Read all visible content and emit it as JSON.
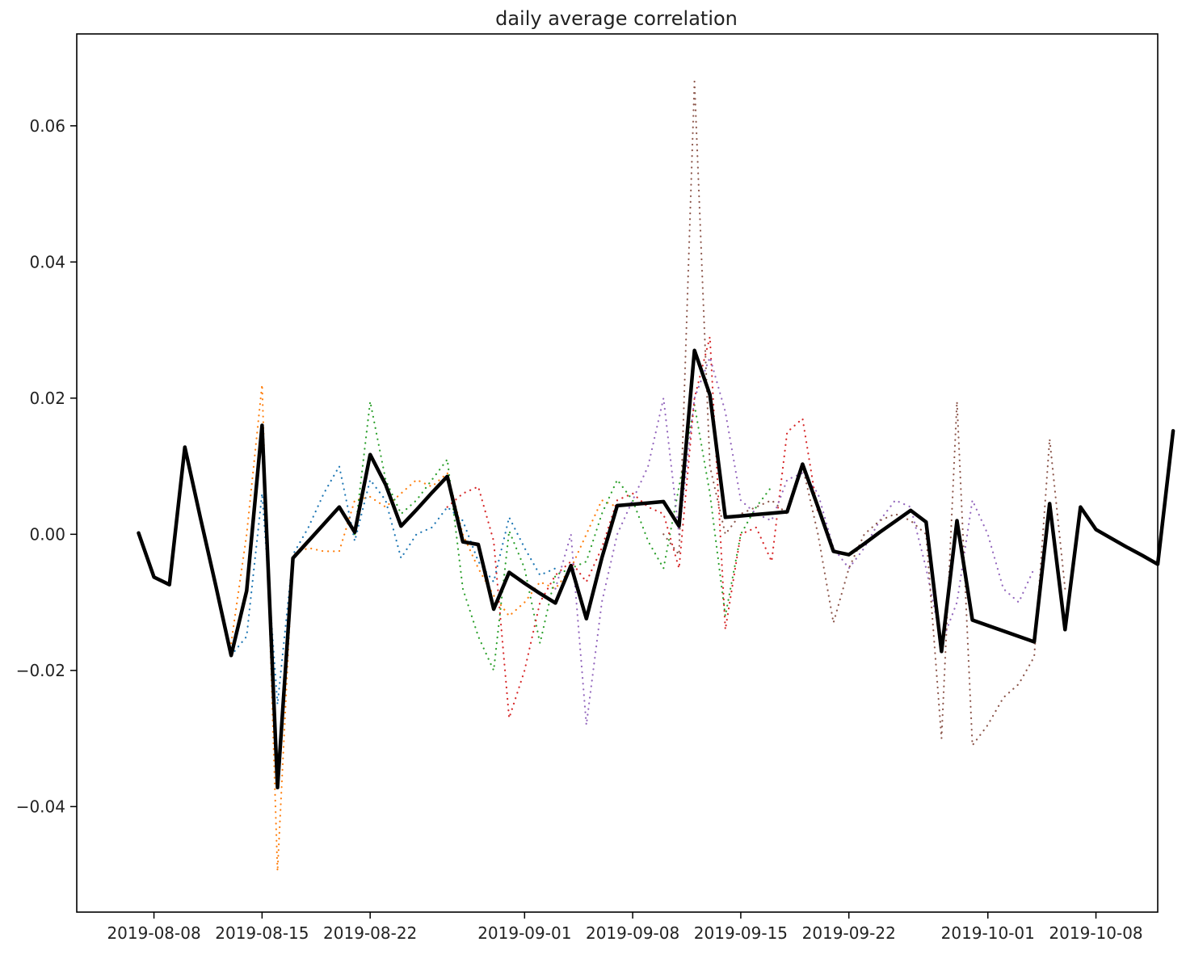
{
  "chart_data": {
    "type": "line",
    "title": "daily average correlation",
    "xlabel": "",
    "ylabel": "",
    "x_start": "2019-08-07",
    "x_end": "2019-10-10",
    "xlim": [
      "2019-08-03",
      "2019-10-12"
    ],
    "ylim": [
      -0.0555,
      0.0735
    ],
    "x_ticks": [
      "2019-08-08",
      "2019-08-15",
      "2019-08-22",
      "2019-09-01",
      "2019-09-08",
      "2019-09-15",
      "2019-09-22",
      "2019-10-01",
      "2019-10-08"
    ],
    "y_ticks": [
      -0.04,
      -0.02,
      0.0,
      0.02,
      0.04,
      0.06
    ],
    "y_tick_labels": [
      "−0.04",
      "−0.02",
      "0.00",
      "0.02",
      "0.04",
      "0.06"
    ],
    "grid": false,
    "legend": "none",
    "series": [
      {
        "style": "solid",
        "color": "#000000",
        "points": [
          [
            "2019-08-07",
            0.0002
          ],
          [
            "2019-08-08",
            -0.0063
          ],
          [
            "2019-08-09",
            -0.0074
          ],
          [
            "2019-08-10",
            0.0128
          ],
          [
            "2019-08-11",
            0.0025
          ],
          [
            "2019-08-12",
            -0.0075
          ],
          [
            "2019-08-13",
            -0.0178
          ],
          [
            "2019-08-14",
            -0.0083
          ],
          [
            "2019-08-15",
            0.016
          ],
          [
            "2019-08-16",
            -0.0372
          ],
          [
            "2019-08-17",
            -0.0035
          ],
          [
            "2019-08-18",
            -0.001
          ],
          [
            "2019-08-19",
            0.0015
          ],
          [
            "2019-08-20",
            0.004
          ],
          [
            "2019-08-21",
            0.0003
          ],
          [
            "2019-08-22",
            0.0117
          ],
          [
            "2019-08-23",
            0.0073
          ],
          [
            "2019-08-24",
            0.0012
          ],
          [
            "2019-08-25",
            0.0036
          ],
          [
            "2019-08-26",
            0.0061
          ],
          [
            "2019-08-27",
            0.0085
          ],
          [
            "2019-08-28",
            -0.0011
          ],
          [
            "2019-08-29",
            -0.0015
          ],
          [
            "2019-08-30",
            -0.011
          ],
          [
            "2019-08-31",
            -0.0056
          ],
          [
            "2019-09-01",
            -0.0072
          ],
          [
            "2019-09-02",
            -0.0087
          ],
          [
            "2019-09-03",
            -0.0101
          ],
          [
            "2019-09-04",
            -0.0046
          ],
          [
            "2019-09-05",
            -0.0124
          ],
          [
            "2019-09-06",
            -0.0035
          ],
          [
            "2019-09-07",
            0.0042
          ],
          [
            "2019-09-08",
            0.0044
          ],
          [
            "2019-09-09",
            0.0046
          ],
          [
            "2019-09-10",
            0.0048
          ],
          [
            "2019-09-11",
            0.0012
          ],
          [
            "2019-09-12",
            0.027
          ],
          [
            "2019-09-13",
            0.0205
          ],
          [
            "2019-09-14",
            0.0025
          ],
          [
            "2019-09-15",
            0.0027
          ],
          [
            "2019-09-16",
            0.0029
          ],
          [
            "2019-09-17",
            0.0031
          ],
          [
            "2019-09-18",
            0.0033
          ],
          [
            "2019-09-19",
            0.0103
          ],
          [
            "2019-09-20",
            0.004
          ],
          [
            "2019-09-21",
            -0.0025
          ],
          [
            "2019-09-22",
            -0.003
          ],
          [
            "2019-09-23",
            -0.0014
          ],
          [
            "2019-09-24",
            0.0003
          ],
          [
            "2019-09-25",
            0.0019
          ],
          [
            "2019-09-26",
            0.0035
          ],
          [
            "2019-09-27",
            0.0018
          ],
          [
            "2019-09-28",
            -0.0172
          ],
          [
            "2019-09-29",
            0.002
          ],
          [
            "2019-09-30",
            -0.0126
          ],
          [
            "2019-10-01",
            -0.0134
          ],
          [
            "2019-10-02",
            -0.0142
          ],
          [
            "2019-10-03",
            -0.015
          ],
          [
            "2019-10-04",
            -0.0158
          ],
          [
            "2019-10-05",
            0.0045
          ],
          [
            "2019-10-06",
            -0.014
          ],
          [
            "2019-10-07",
            0.004
          ],
          [
            "2019-10-08",
            0.0007
          ],
          [
            "2019-10-09",
            -0.0006
          ],
          [
            "2019-10-10",
            -0.0019
          ],
          [
            "2019-10-11",
            -0.0031
          ],
          [
            "2019-10-12",
            -0.0044
          ],
          [
            "2019-10-13",
            0.0152
          ]
        ]
      },
      {
        "style": "dotted",
        "color": "#1f77b4",
        "points": [
          [
            "2019-08-13",
            -0.0178
          ],
          [
            "2019-08-14",
            -0.015
          ],
          [
            "2019-08-15",
            0.006
          ],
          [
            "2019-08-16",
            -0.025
          ],
          [
            "2019-08-17",
            -0.003
          ],
          [
            "2019-08-18",
            0.001
          ],
          [
            "2019-08-19",
            0.006
          ],
          [
            "2019-08-20",
            0.01
          ],
          [
            "2019-08-21",
            -0.001
          ],
          [
            "2019-08-22",
            0.008
          ],
          [
            "2019-08-23",
            0.005
          ],
          [
            "2019-08-24",
            -0.0035
          ],
          [
            "2019-08-25",
            0.0
          ],
          [
            "2019-08-26",
            0.001
          ],
          [
            "2019-08-27",
            0.004
          ],
          [
            "2019-08-28",
            0.002
          ],
          [
            "2019-08-29",
            -0.004
          ],
          [
            "2019-08-30",
            -0.007
          ],
          [
            "2019-08-31",
            0.0025
          ],
          [
            "2019-09-01",
            -0.002
          ],
          [
            "2019-09-02",
            -0.006
          ],
          [
            "2019-09-03",
            -0.005
          ]
        ]
      },
      {
        "style": "dotted",
        "color": "#ff7f0e",
        "points": [
          [
            "2019-08-13",
            -0.016
          ],
          [
            "2019-08-14",
            0.0
          ],
          [
            "2019-08-15",
            0.022
          ],
          [
            "2019-08-16",
            -0.0495
          ],
          [
            "2019-08-17",
            -0.003
          ],
          [
            "2019-08-18",
            -0.002
          ],
          [
            "2019-08-19",
            -0.0025
          ],
          [
            "2019-08-20",
            -0.0025
          ],
          [
            "2019-08-21",
            0.005
          ],
          [
            "2019-08-22",
            0.0055
          ],
          [
            "2019-08-23",
            0.004
          ],
          [
            "2019-08-24",
            0.006
          ],
          [
            "2019-08-25",
            0.008
          ],
          [
            "2019-08-26",
            0.007
          ],
          [
            "2019-08-27",
            0.009
          ],
          [
            "2019-08-28",
            0.0
          ],
          [
            "2019-08-29",
            -0.005
          ],
          [
            "2019-08-30",
            -0.009
          ],
          [
            "2019-08-31",
            -0.012
          ],
          [
            "2019-09-01",
            -0.01
          ],
          [
            "2019-09-02",
            -0.007
          ],
          [
            "2019-09-03",
            -0.008
          ],
          [
            "2019-09-04",
            -0.005
          ],
          [
            "2019-09-05",
            0.0
          ],
          [
            "2019-09-06",
            0.005
          ],
          [
            "2019-09-07",
            0.004
          ]
        ]
      },
      {
        "style": "dotted",
        "color": "#2ca02c",
        "points": [
          [
            "2019-08-21",
            0.0
          ],
          [
            "2019-08-22",
            0.0195
          ],
          [
            "2019-08-23",
            0.008
          ],
          [
            "2019-08-24",
            0.003
          ],
          [
            "2019-08-25",
            0.005
          ],
          [
            "2019-08-26",
            0.008
          ],
          [
            "2019-08-27",
            0.011
          ],
          [
            "2019-08-28",
            -0.008
          ],
          [
            "2019-08-29",
            -0.015
          ],
          [
            "2019-08-30",
            -0.02
          ],
          [
            "2019-08-31",
            0.0005
          ],
          [
            "2019-09-01",
            -0.005
          ],
          [
            "2019-09-02",
            -0.016
          ],
          [
            "2019-09-03",
            -0.006
          ],
          [
            "2019-09-04",
            -0.005
          ],
          [
            "2019-09-05",
            -0.004
          ],
          [
            "2019-09-06",
            0.003
          ],
          [
            "2019-09-07",
            0.008
          ],
          [
            "2019-09-08",
            0.005
          ],
          [
            "2019-09-09",
            -0.001
          ],
          [
            "2019-09-10",
            -0.005
          ],
          [
            "2019-09-11",
            0.007
          ],
          [
            "2019-09-12",
            0.019
          ],
          [
            "2019-09-13",
            0.006
          ],
          [
            "2019-09-14",
            -0.012
          ],
          [
            "2019-09-15",
            0.0
          ],
          [
            "2019-09-16",
            0.004
          ],
          [
            "2019-09-17",
            0.007
          ]
        ]
      },
      {
        "style": "dotted",
        "color": "#d62728",
        "points": [
          [
            "2019-08-27",
            0.004
          ],
          [
            "2019-08-28",
            0.006
          ],
          [
            "2019-08-29",
            0.007
          ],
          [
            "2019-08-30",
            -0.001
          ],
          [
            "2019-08-31",
            -0.027
          ],
          [
            "2019-09-01",
            -0.02
          ],
          [
            "2019-09-02",
            -0.01
          ],
          [
            "2019-09-03",
            -0.006
          ],
          [
            "2019-09-04",
            -0.004
          ],
          [
            "2019-09-05",
            -0.007
          ],
          [
            "2019-09-06",
            -0.002
          ],
          [
            "2019-09-07",
            0.005
          ],
          [
            "2019-09-08",
            0.006
          ],
          [
            "2019-09-09",
            0.004
          ],
          [
            "2019-09-10",
            0.003
          ],
          [
            "2019-09-11",
            -0.005
          ],
          [
            "2019-09-12",
            0.02
          ],
          [
            "2019-09-13",
            0.029
          ],
          [
            "2019-09-14",
            -0.014
          ],
          [
            "2019-09-15",
            0.0
          ],
          [
            "2019-09-16",
            0.001
          ],
          [
            "2019-09-17",
            -0.004
          ],
          [
            "2019-09-18",
            0.015
          ],
          [
            "2019-09-19",
            0.017
          ],
          [
            "2019-09-20",
            0.003
          ]
        ]
      },
      {
        "style": "dotted",
        "color": "#9467bd",
        "points": [
          [
            "2019-09-03",
            -0.008
          ],
          [
            "2019-09-04",
            0.0
          ],
          [
            "2019-09-05",
            -0.028
          ],
          [
            "2019-09-06",
            -0.01
          ],
          [
            "2019-09-07",
            0.0
          ],
          [
            "2019-09-08",
            0.005
          ],
          [
            "2019-09-09",
            0.01
          ],
          [
            "2019-09-10",
            0.02
          ],
          [
            "2019-09-11",
            0.0
          ],
          [
            "2019-09-12",
            0.02
          ],
          [
            "2019-09-13",
            0.026
          ],
          [
            "2019-09-14",
            0.018
          ],
          [
            "2019-09-15",
            0.005
          ],
          [
            "2019-09-16",
            0.003
          ],
          [
            "2019-09-17",
            0.002
          ],
          [
            "2019-09-18",
            0.008
          ],
          [
            "2019-09-19",
            0.009
          ],
          [
            "2019-09-20",
            0.006
          ],
          [
            "2019-09-21",
            -0.002
          ],
          [
            "2019-09-22",
            -0.005
          ],
          [
            "2019-09-23",
            -0.002
          ],
          [
            "2019-09-24",
            0.002
          ],
          [
            "2019-09-25",
            0.005
          ],
          [
            "2019-09-26",
            0.004
          ],
          [
            "2019-09-27",
            -0.005
          ],
          [
            "2019-09-28",
            -0.016
          ],
          [
            "2019-09-29",
            -0.01
          ],
          [
            "2019-09-30",
            0.005
          ],
          [
            "2019-10-01",
            0.0
          ],
          [
            "2019-10-02",
            -0.008
          ],
          [
            "2019-10-03",
            -0.01
          ],
          [
            "2019-10-04",
            -0.005
          ]
        ]
      },
      {
        "style": "dotted",
        "color": "#8c564b",
        "points": [
          [
            "2019-09-10",
            0.0
          ],
          [
            "2019-09-11",
            -0.003
          ],
          [
            "2019-09-12",
            0.0665
          ],
          [
            "2019-09-13",
            0.01
          ],
          [
            "2019-09-14",
            0.0
          ],
          [
            "2019-09-15",
            0.003
          ],
          [
            "2019-09-16",
            0.004
          ],
          [
            "2019-09-17",
            0.005
          ],
          [
            "2019-09-18",
            0.003
          ],
          [
            "2019-09-19",
            0.01
          ],
          [
            "2019-09-20",
            0.0
          ],
          [
            "2019-09-21",
            -0.013
          ],
          [
            "2019-09-22",
            -0.005
          ],
          [
            "2019-09-23",
            0.0
          ],
          [
            "2019-09-24",
            0.002
          ],
          [
            "2019-09-25",
            0.003
          ],
          [
            "2019-09-26",
            0.002
          ],
          [
            "2019-09-27",
            0.0
          ],
          [
            "2019-09-28",
            -0.03
          ],
          [
            "2019-09-29",
            0.0195
          ],
          [
            "2019-09-30",
            -0.031
          ],
          [
            "2019-10-01",
            -0.028
          ],
          [
            "2019-10-02",
            -0.024
          ],
          [
            "2019-10-03",
            -0.022
          ],
          [
            "2019-10-04",
            -0.018
          ],
          [
            "2019-10-05",
            0.014
          ],
          [
            "2019-10-06",
            -0.008
          ]
        ]
      }
    ]
  }
}
